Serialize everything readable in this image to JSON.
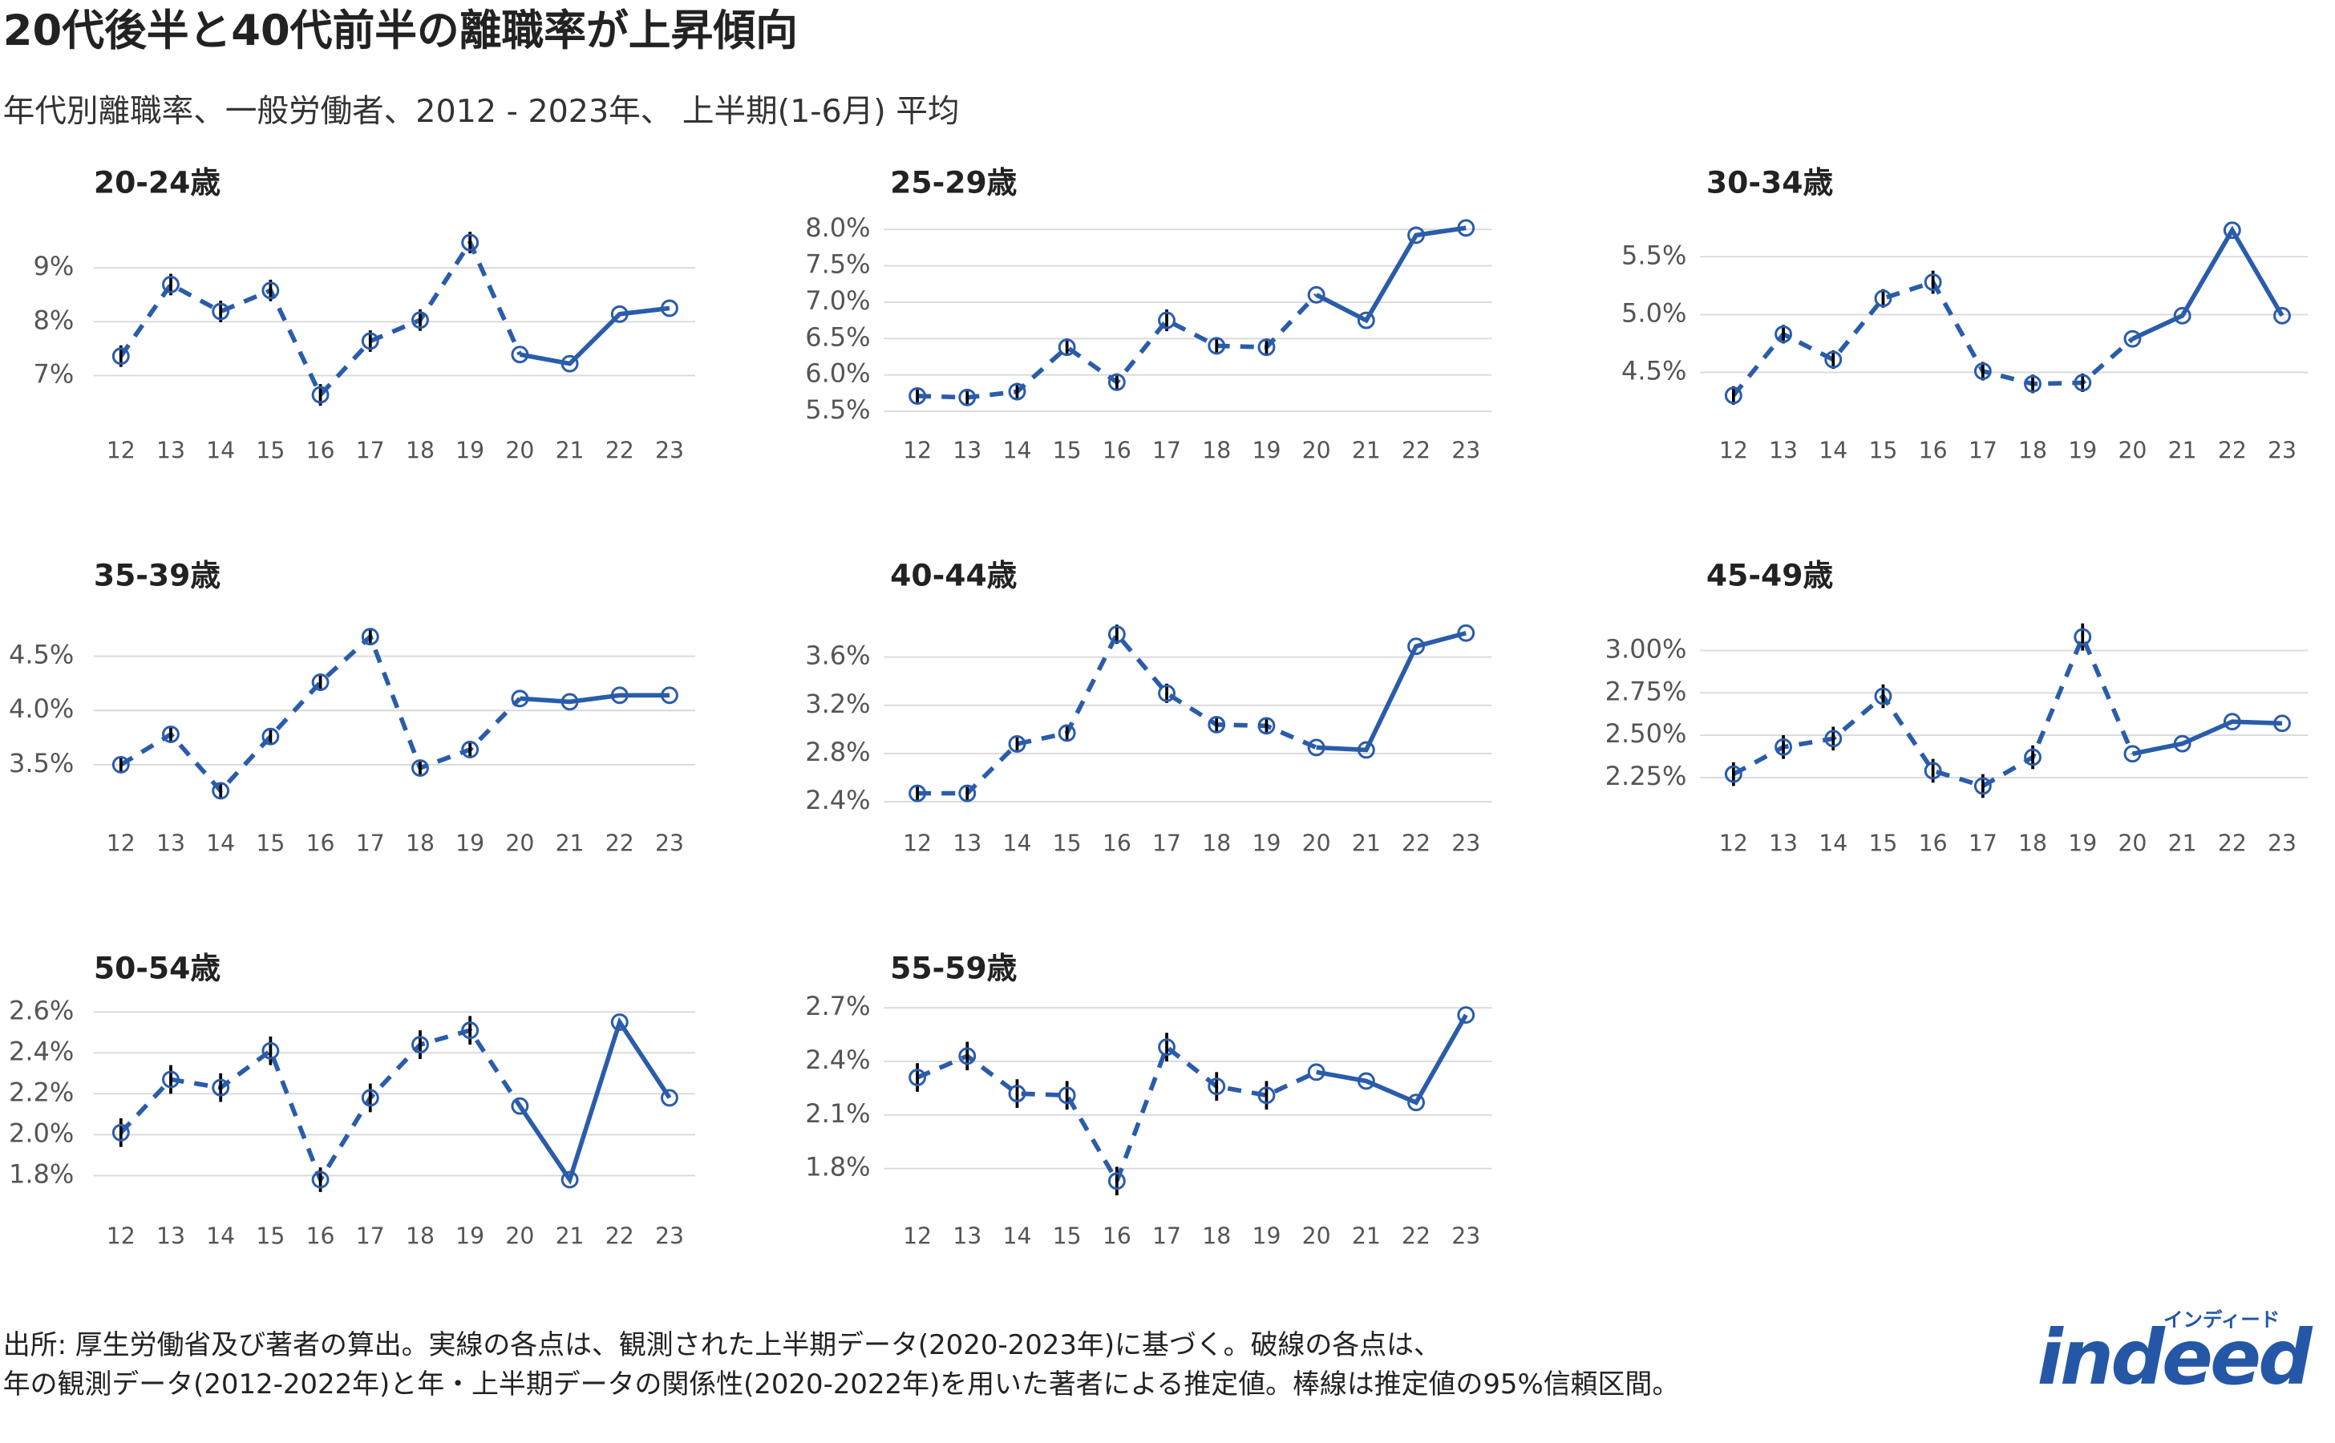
{
  "title": "20代後半と40代前半の離職率が上昇傾向",
  "subtitle": "年代別離職率、一般労働者、2012 - 2023年、 上半期(1-6月) 平均",
  "footnote": [
    "出所: 厚生労働省及び著者の算出。実線の各点は、観測された上半期データ(2020-2023年)に基づく。破線の各点は、",
    "年の観測データ(2012-2022年)と年・上半期データの関係性(2020-2022年)を用いた著者による推定値。棒線は推定値の95%信頼区間。"
  ],
  "logo": {
    "text": "indeed",
    "kana": "インディード"
  },
  "chart_data": [
    {
      "type": "line",
      "title": "20-24歳",
      "color": "#2a5caa",
      "error_color": "#000000",
      "grid": true,
      "categories": [
        "12",
        "13",
        "14",
        "15",
        "16",
        "17",
        "18",
        "19",
        "20",
        "21",
        "22",
        "23"
      ],
      "values": [
        7.36,
        8.69,
        8.19,
        8.58,
        6.64,
        7.64,
        8.03,
        9.47,
        7.39,
        7.22,
        8.14,
        8.25
      ],
      "errors": [
        0.2,
        0.2,
        0.2,
        0.2,
        0.2,
        0.2,
        0.2,
        0.2,
        null,
        null,
        null,
        null
      ],
      "ylim": [
        6.2,
        9.85
      ],
      "yticks": [
        {
          "value": 7,
          "label": "7%"
        },
        {
          "value": 8,
          "label": "8%"
        },
        {
          "value": 9,
          "label": "9%"
        }
      ]
    },
    {
      "type": "line",
      "title": "25-29歳",
      "color": "#2a5caa",
      "error_color": "#000000",
      "grid": true,
      "categories": [
        "12",
        "13",
        "14",
        "15",
        "16",
        "17",
        "18",
        "19",
        "20",
        "21",
        "22",
        "23"
      ],
      "values": [
        5.71,
        5.69,
        5.77,
        6.38,
        5.9,
        6.75,
        6.4,
        6.38,
        7.1,
        6.75,
        7.92,
        8.02
      ],
      "errors": [
        0.1,
        0.1,
        0.12,
        0.12,
        0.12,
        0.15,
        0.12,
        0.12,
        null,
        null,
        null,
        null
      ],
      "ylim": [
        5.4,
        8.1
      ],
      "yticks": [
        {
          "value": 5.5,
          "label": "5.5%"
        },
        {
          "value": 6,
          "label": "6.0%"
        },
        {
          "value": 6.5,
          "label": "6.5%"
        },
        {
          "value": 7,
          "label": "7.0%"
        },
        {
          "value": 7.5,
          "label": "7.5%"
        },
        {
          "value": 8,
          "label": "8.0%"
        }
      ]
    },
    {
      "type": "line",
      "title": "30-34歳",
      "color": "#2a5caa",
      "error_color": "#000000",
      "grid": true,
      "categories": [
        "12",
        "13",
        "14",
        "15",
        "16",
        "17",
        "18",
        "19",
        "20",
        "21",
        "22",
        "23"
      ],
      "values": [
        4.3,
        4.83,
        4.61,
        5.14,
        5.28,
        4.51,
        4.4,
        4.41,
        4.79,
        4.99,
        5.73,
        4.99
      ],
      "errors": [
        0.08,
        0.08,
        0.08,
        0.08,
        0.1,
        0.08,
        0.08,
        0.08,
        null,
        null,
        null,
        null
      ],
      "ylim": [
        4.1,
        5.8
      ],
      "yticks": [
        {
          "value": 4.5,
          "label": "4.5%"
        },
        {
          "value": 5,
          "label": "5.0%"
        },
        {
          "value": 5.5,
          "label": "5.5%"
        }
      ]
    },
    {
      "type": "line",
      "title": "35-39歳",
      "color": "#2a5caa",
      "error_color": "#000000",
      "grid": true,
      "categories": [
        "12",
        "13",
        "14",
        "15",
        "16",
        "17",
        "18",
        "19",
        "20",
        "21",
        "22",
        "23"
      ],
      "values": [
        3.5,
        3.78,
        3.26,
        3.76,
        4.26,
        4.68,
        3.47,
        3.64,
        4.11,
        4.08,
        4.14,
        4.14
      ],
      "errors": [
        0.06,
        0.07,
        0.07,
        0.07,
        0.08,
        0.08,
        0.07,
        0.08,
        null,
        null,
        null,
        null
      ],
      "ylim": [
        3.07,
        4.88
      ],
      "yticks": [
        {
          "value": 3.5,
          "label": "3.5%"
        },
        {
          "value": 4,
          "label": "4.0%"
        },
        {
          "value": 4.5,
          "label": "4.5%"
        }
      ]
    },
    {
      "type": "line",
      "title": "40-44歳",
      "color": "#2a5caa",
      "error_color": "#000000",
      "grid": true,
      "categories": [
        "12",
        "13",
        "14",
        "15",
        "16",
        "17",
        "18",
        "19",
        "20",
        "21",
        "22",
        "23"
      ],
      "values": [
        2.47,
        2.47,
        2.88,
        2.97,
        3.79,
        3.3,
        3.04,
        3.03,
        2.85,
        2.83,
        3.69,
        3.8
      ],
      "errors": [
        0.06,
        0.06,
        0.06,
        0.06,
        0.08,
        0.08,
        0.06,
        0.06,
        null,
        null,
        null,
        null
      ],
      "ylim": [
        2.32,
        3.95
      ],
      "yticks": [
        {
          "value": 2.4,
          "label": "2.4%"
        },
        {
          "value": 2.8,
          "label": "2.8%"
        },
        {
          "value": 3.2,
          "label": "3.2%"
        },
        {
          "value": 3.6,
          "label": "3.6%"
        }
      ]
    },
    {
      "type": "line",
      "title": "45-49歳",
      "color": "#2a5caa",
      "error_color": "#000000",
      "grid": true,
      "categories": [
        "12",
        "13",
        "14",
        "15",
        "16",
        "17",
        "18",
        "19",
        "20",
        "21",
        "22",
        "23"
      ],
      "values": [
        2.27,
        2.43,
        2.48,
        2.73,
        2.29,
        2.2,
        2.37,
        3.08,
        2.39,
        2.45,
        2.58,
        2.57
      ],
      "errors": [
        0.07,
        0.07,
        0.07,
        0.07,
        0.07,
        0.07,
        0.07,
        0.08,
        null,
        null,
        null,
        null
      ],
      "ylim": [
        2.05,
        3.21
      ],
      "yticks": [
        {
          "value": 2.25,
          "label": "2.25%"
        },
        {
          "value": 2.5,
          "label": "2.50%"
        },
        {
          "value": 2.75,
          "label": "2.75%"
        },
        {
          "value": 3,
          "label": "3.00%"
        }
      ]
    },
    {
      "type": "line",
      "title": "50-54歳",
      "color": "#2a5caa",
      "error_color": "#000000",
      "grid": true,
      "categories": [
        "12",
        "13",
        "14",
        "15",
        "16",
        "17",
        "18",
        "19",
        "20",
        "21",
        "22",
        "23"
      ],
      "values": [
        2.01,
        2.27,
        2.23,
        2.41,
        1.78,
        2.18,
        2.44,
        2.51,
        2.14,
        1.78,
        2.55,
        2.18
      ],
      "errors": [
        0.07,
        0.07,
        0.07,
        0.07,
        0.06,
        0.07,
        0.07,
        0.07,
        null,
        null,
        null,
        null
      ],
      "ylim": [
        1.66,
        2.62
      ],
      "yticks": [
        {
          "value": 1.8,
          "label": "1.8%"
        },
        {
          "value": 2,
          "label": "2.0%"
        },
        {
          "value": 2.2,
          "label": "2.2%"
        },
        {
          "value": 2.4,
          "label": "2.4%"
        },
        {
          "value": 2.6,
          "label": "2.6%"
        }
      ]
    },
    {
      "type": "line",
      "title": "55-59歳",
      "color": "#2a5caa",
      "error_color": "#000000",
      "grid": true,
      "categories": [
        "12",
        "13",
        "14",
        "15",
        "16",
        "17",
        "18",
        "19",
        "20",
        "21",
        "22",
        "23"
      ],
      "values": [
        2.31,
        2.43,
        2.22,
        2.21,
        1.73,
        2.48,
        2.26,
        2.21,
        2.34,
        2.29,
        2.17,
        2.66
      ],
      "errors": [
        0.08,
        0.08,
        0.08,
        0.08,
        0.08,
        0.08,
        0.08,
        0.08,
        null,
        null,
        null,
        null
      ],
      "ylim": [
        1.6,
        2.7
      ],
      "yticks": [
        {
          "value": 1.8,
          "label": "1.8%"
        },
        {
          "value": 2.1,
          "label": "2.1%"
        },
        {
          "value": 2.4,
          "label": "2.4%"
        },
        {
          "value": 2.7,
          "label": "2.7%"
        }
      ]
    }
  ]
}
